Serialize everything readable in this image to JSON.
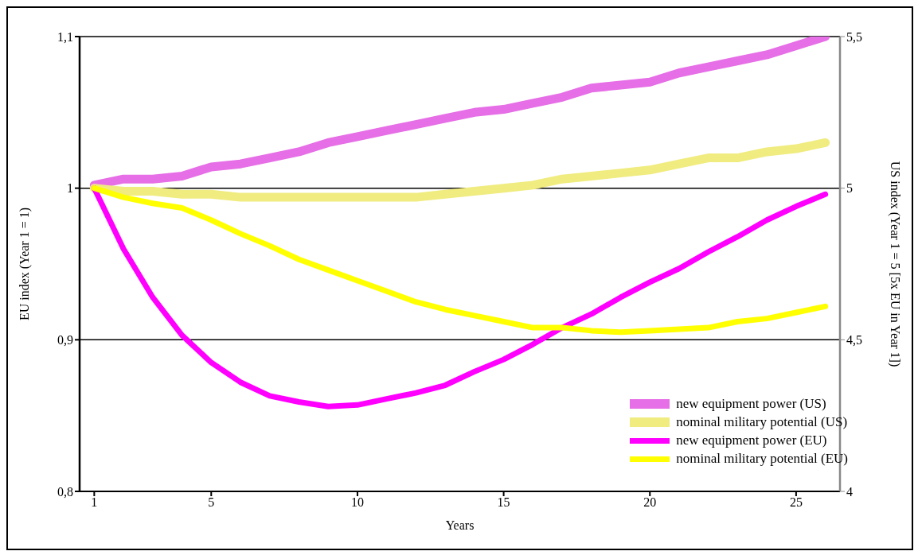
{
  "chart_data": {
    "type": "line",
    "xlabel": "Years",
    "ylabel": "EU index (Year 1 = 1)",
    "y2label": "US index (Year 1 = 5 [5x EU in Year 1])",
    "x": [
      1,
      2,
      3,
      4,
      5,
      6,
      7,
      8,
      9,
      10,
      11,
      12,
      13,
      14,
      15,
      16,
      17,
      18,
      19,
      20,
      21,
      22,
      23,
      24,
      25,
      26
    ],
    "xlim": [
      0.5,
      26.5
    ],
    "xticks": [
      1,
      5,
      10,
      15,
      20,
      25
    ],
    "ylim": [
      0.8,
      1.1
    ],
    "yticks": [
      {
        "value": 0.8,
        "label": "0,8"
      },
      {
        "value": 0.9,
        "label": "0,9"
      },
      {
        "value": 1,
        "label": "1"
      },
      {
        "value": 1.1,
        "label": "1,1"
      }
    ],
    "y2lim": [
      4,
      5.5
    ],
    "y2ticks": [
      {
        "value": 4,
        "label": "4"
      },
      {
        "value": 4.5,
        "label": "4,5"
      },
      {
        "value": 5,
        "label": "5"
      },
      {
        "value": 5.5,
        "label": "5,5"
      }
    ],
    "grid": "y",
    "legend": "bottom right",
    "marker": "none",
    "line_style": "solid",
    "series": [
      {
        "name": "new equipment power (US)",
        "color": "#e66ee6",
        "axis": "y2",
        "values": [
          5.01,
          5.03,
          5.03,
          5.04,
          5.07,
          5.08,
          5.1,
          5.12,
          5.15,
          5.17,
          5.19,
          5.21,
          5.23,
          5.25,
          5.26,
          5.28,
          5.3,
          5.33,
          5.34,
          5.35,
          5.38,
          5.4,
          5.42,
          5.44,
          5.47,
          5.5
        ]
      },
      {
        "name": "nominal military potential (US)",
        "color": "#f0ec80",
        "axis": "y2",
        "values": [
          5.0,
          4.99,
          4.99,
          4.98,
          4.98,
          4.97,
          4.97,
          4.97,
          4.97,
          4.97,
          4.97,
          4.97,
          4.98,
          4.99,
          5.0,
          5.01,
          5.03,
          5.04,
          5.05,
          5.06,
          5.08,
          5.1,
          5.1,
          5.12,
          5.13,
          5.15
        ]
      },
      {
        "name": "new equipment power (EU)",
        "color": "#ff00ff",
        "values": [
          1.0,
          0.96,
          0.928,
          0.903,
          0.885,
          0.872,
          0.863,
          0.859,
          0.856,
          0.857,
          0.861,
          0.865,
          0.87,
          0.879,
          0.887,
          0.897,
          0.908,
          0.917,
          0.928,
          0.938,
          0.947,
          0.958,
          0.968,
          0.979,
          0.988,
          0.996
        ]
      },
      {
        "name": "nominal military potential (EU)",
        "color": "#ffff00",
        "values": [
          1.0,
          0.994,
          0.99,
          0.987,
          0.979,
          0.97,
          0.962,
          0.953,
          0.946,
          0.939,
          0.932,
          0.925,
          0.92,
          0.916,
          0.912,
          0.908,
          0.908,
          0.906,
          0.905,
          0.906,
          0.907,
          0.908,
          0.912,
          0.914,
          0.918,
          0.922
        ]
      }
    ]
  }
}
